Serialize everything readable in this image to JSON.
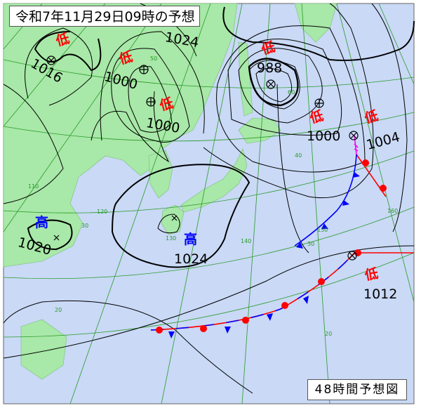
{
  "header": {
    "title": "令和7年11月29日09時の予想"
  },
  "footer": {
    "caption": "48時間予想図"
  },
  "colors": {
    "sea": "#c9d9f6",
    "land": "#a8e8a8",
    "grid": "#2a9a2a",
    "low": "#ff0000",
    "high": "#0000ff",
    "warm_front": "#ff0000",
    "cold_front": "#0000ff",
    "occluded_front": "#ff00ff"
  },
  "systems": [
    {
      "type": "low",
      "mark": "低",
      "pressure": "1016"
    },
    {
      "type": "low",
      "mark": "低",
      "pressure": "1000"
    },
    {
      "type": "low",
      "mark": "低",
      "pressure": "1000"
    },
    {
      "type": "low",
      "mark": "低",
      "pressure": "988"
    },
    {
      "type": "low",
      "mark": "低",
      "pressure": "1000"
    },
    {
      "type": "low",
      "mark": "低",
      "pressure": "1004"
    },
    {
      "type": "low",
      "mark": "低",
      "pressure": "1012"
    },
    {
      "type": "high",
      "mark": "高",
      "pressure": "1020"
    },
    {
      "type": "high",
      "mark": "高",
      "pressure": "1024"
    }
  ],
  "isobar_labels": [
    "1024"
  ],
  "grid_labels": [
    "110",
    "120",
    "130",
    "140",
    "150",
    "160",
    "20",
    "30",
    "40",
    "50",
    "60",
    "20",
    "30"
  ]
}
